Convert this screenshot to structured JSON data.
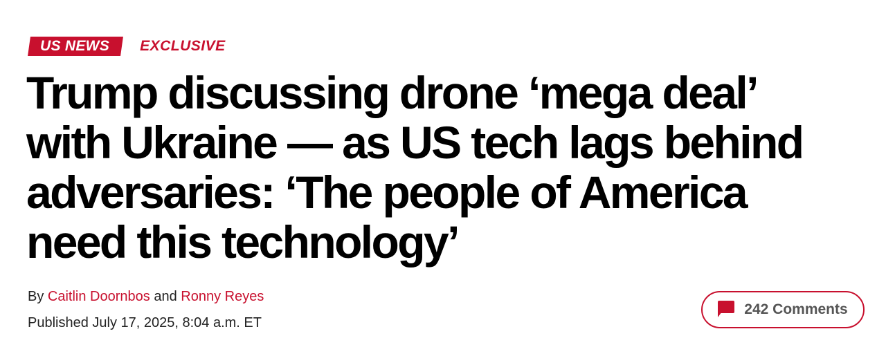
{
  "tags": {
    "section": "US NEWS",
    "label": "EXCLUSIVE"
  },
  "headline": {
    "lines": [
      "Trump discussing drone ‘mega deal’",
      "with Ukraine — as US tech lags behind",
      "adversaries: ‘The people of America",
      "need this technology’"
    ]
  },
  "byline": {
    "prefix": "By",
    "author1": "Caitlin Doornbos",
    "conjunction": "and",
    "author2": "Ronny Reyes"
  },
  "published": "Published July 17, 2025, 8:04 a.m. ET",
  "comments": {
    "label": "242 Comments",
    "icon": "comment-bubble-icon"
  },
  "colors": {
    "accent": "#c8102e"
  }
}
